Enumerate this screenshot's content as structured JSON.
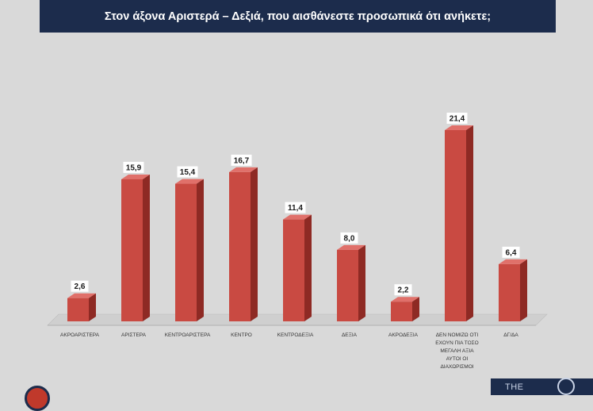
{
  "title": "Στον άξονα Αριστερά – Δεξιά, που αισθάνεστε προσωπικά ότι ανήκετε;",
  "colors": {
    "background": "#d9d9d9",
    "title_bg": "#1c2c4c",
    "bar_front": "#c94a42",
    "bar_side": "#8e2a24",
    "bar_top": "#e0706a"
  },
  "logo_right_text": "THE",
  "chart_data": {
    "type": "bar",
    "title": "Στον άξονα Αριστερά – Δεξιά, που αισθάνεστε προσωπικά ότι ανήκετε;",
    "categories": [
      [
        "ΑΚΡΟΑΡΙΣΤΕΡΑ"
      ],
      [
        "ΑΡΙΣΤΕΡΑ"
      ],
      [
        "ΚΕΝΤΡΟΑΡΙΣΤΕΡΑ"
      ],
      [
        "ΚΕΝΤΡΟ"
      ],
      [
        "ΚΕΝΤΡΟΔΕΞΙΑ"
      ],
      [
        "ΔΕΞΙΑ"
      ],
      [
        "ΑΚΡΟΔΕΞΙΑ"
      ],
      [
        "ΔΕΝ ΝΟΜΙΖΩ ΟΤΙ",
        "ΕΧΟΥΝ ΠΙΑ ΤΟΣΟ",
        "ΜΕΓΑΛΗ ΑΞΙΑ",
        "ΑΥΤΟΙ ΟΙ",
        "ΔΙΑΧΩΡΙΣΜΟΙ"
      ],
      [
        "ΔΓ/ΔΑ"
      ]
    ],
    "values": [
      2.6,
      15.9,
      15.4,
      16.7,
      11.4,
      8.0,
      2.2,
      21.4,
      6.4
    ],
    "labels": [
      "2,6",
      "15,9",
      "15,4",
      "16,7",
      "11,4",
      "8,0",
      "2,2",
      "21,4",
      "6,4"
    ],
    "ylim": [
      0,
      21.4
    ],
    "grid": false,
    "legend": "none"
  }
}
